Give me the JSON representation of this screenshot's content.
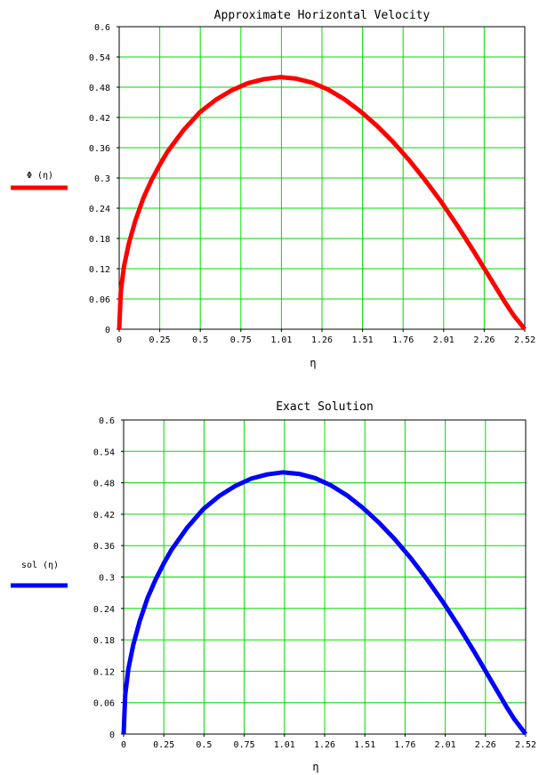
{
  "chart_data": [
    {
      "type": "line",
      "title": "Approximate Horizontal Velocity",
      "xlabel": "η",
      "ylabel": "Φ (η)",
      "xlim": [
        0,
        2.52
      ],
      "ylim": [
        0,
        0.6
      ],
      "x_ticks": [
        "0",
        "0.25",
        "0.5",
        "0.75",
        "1.01",
        "1.26",
        "1.51",
        "1.76",
        "2.01",
        "2.26",
        "2.52"
      ],
      "y_ticks": [
        "0",
        "0.06",
        "0.12",
        "0.18",
        "0.24",
        "0.3",
        "0.36",
        "0.42",
        "0.48",
        "0.54",
        "0.6"
      ],
      "grid": true,
      "grid_color": "#00dd00",
      "series": [
        {
          "name": "Φ (η)",
          "color": "#ff0000",
          "x": [
            0,
            0.01,
            0.03,
            0.06,
            0.1,
            0.15,
            0.2,
            0.25,
            0.3,
            0.4,
            0.5,
            0.6,
            0.7,
            0.8,
            0.9,
            1.0,
            1.1,
            1.2,
            1.3,
            1.4,
            1.5,
            1.6,
            1.7,
            1.8,
            1.9,
            2.0,
            2.1,
            2.2,
            2.3,
            2.4,
            2.45,
            2.5,
            2.52
          ],
          "y": [
            0,
            0.075,
            0.125,
            0.17,
            0.215,
            0.26,
            0.295,
            0.325,
            0.352,
            0.395,
            0.43,
            0.455,
            0.474,
            0.488,
            0.496,
            0.5,
            0.497,
            0.489,
            0.475,
            0.456,
            0.432,
            0.404,
            0.372,
            0.336,
            0.296,
            0.253,
            0.206,
            0.156,
            0.104,
            0.052,
            0.028,
            0.008,
            0
          ]
        }
      ]
    },
    {
      "type": "line",
      "title": "Exact Solution",
      "xlabel": "η",
      "ylabel": "sol (η)",
      "xlim": [
        0,
        2.52
      ],
      "ylim": [
        0,
        0.6
      ],
      "x_ticks": [
        "0",
        "0.25",
        "0.5",
        "0.75",
        "1.01",
        "1.26",
        "1.51",
        "1.76",
        "2.01",
        "2.26",
        "2.52"
      ],
      "y_ticks": [
        "0",
        "0.06",
        "0.12",
        "0.18",
        "0.24",
        "0.3",
        "0.36",
        "0.42",
        "0.48",
        "0.54",
        "0.6"
      ],
      "grid": true,
      "grid_color": "#00dd00",
      "series": [
        {
          "name": "sol (η)",
          "color": "#0000ff",
          "x": [
            0,
            0.01,
            0.03,
            0.06,
            0.1,
            0.15,
            0.2,
            0.25,
            0.3,
            0.4,
            0.5,
            0.6,
            0.7,
            0.8,
            0.9,
            1.0,
            1.1,
            1.2,
            1.3,
            1.4,
            1.5,
            1.6,
            1.7,
            1.8,
            1.9,
            2.0,
            2.1,
            2.2,
            2.3,
            2.4,
            2.45,
            2.5,
            2.52
          ],
          "y": [
            0,
            0.075,
            0.125,
            0.17,
            0.215,
            0.26,
            0.295,
            0.325,
            0.352,
            0.395,
            0.43,
            0.455,
            0.474,
            0.488,
            0.496,
            0.5,
            0.497,
            0.489,
            0.475,
            0.456,
            0.432,
            0.404,
            0.372,
            0.336,
            0.296,
            0.253,
            0.206,
            0.156,
            0.104,
            0.052,
            0.028,
            0.008,
            0
          ]
        }
      ]
    }
  ]
}
